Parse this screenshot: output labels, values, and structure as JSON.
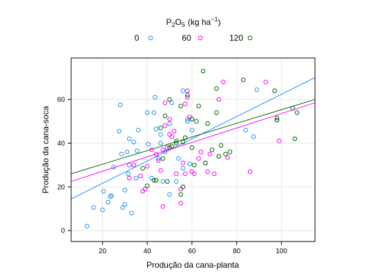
{
  "chart_data": {
    "type": "scatter",
    "title": "P2O5 (kg ha−1)",
    "title_parts": {
      "base": "P",
      "sub1": "2",
      "mid": "O",
      "sub2": "5",
      "unit": "(kg ha",
      "sup": "−1",
      "close": ")"
    },
    "xlabel": "Produção da cana-planta",
    "ylabel": "Produção da cana-soca",
    "xlim": [
      6,
      115
    ],
    "ylim": [
      -5,
      79
    ],
    "xticks": [
      20,
      40,
      60,
      80,
      100
    ],
    "yticks": [
      0,
      20,
      40,
      60
    ],
    "grid": true,
    "legend_position": "top",
    "series": [
      {
        "name": "0",
        "color": "#1e90ff",
        "points": [
          [
            13,
            2
          ],
          [
            16,
            10.5
          ],
          [
            20,
            9.5
          ],
          [
            20.5,
            18
          ],
          [
            22.5,
            13
          ],
          [
            23.5,
            15.5
          ],
          [
            24,
            16
          ],
          [
            25,
            29
          ],
          [
            27.5,
            45.5
          ],
          [
            28,
            57.5
          ],
          [
            28.5,
            35
          ],
          [
            29,
            10.5
          ],
          [
            30,
            12
          ],
          [
            30,
            18.5
          ],
          [
            31,
            36
          ],
          [
            31.5,
            26
          ],
          [
            32,
            30
          ],
          [
            32,
            42
          ],
          [
            33,
            8
          ],
          [
            34,
            40.5
          ],
          [
            35,
            24
          ],
          [
            35.5,
            36.5
          ],
          [
            36,
            46
          ],
          [
            40,
            54
          ],
          [
            40.5,
            39.5
          ],
          [
            42,
            24
          ],
          [
            43,
            54
          ],
          [
            43.5,
            61
          ],
          [
            44,
            46.5
          ],
          [
            45,
            33
          ],
          [
            46,
            44
          ],
          [
            46,
            40
          ],
          [
            47,
            22.5
          ],
          [
            48,
            36
          ],
          [
            50,
            16.5
          ],
          [
            50,
            49
          ],
          [
            51,
            58.5
          ],
          [
            53,
            22.5
          ],
          [
            54,
            33
          ],
          [
            56,
            64
          ],
          [
            56,
            28.5
          ],
          [
            58,
            50
          ],
          [
            58,
            51
          ],
          [
            59,
            30.5
          ],
          [
            60,
            51
          ],
          [
            60,
            46
          ],
          [
            84,
            46
          ],
          [
            87.5,
            43
          ],
          [
            89,
            64.5
          ]
        ]
      },
      {
        "name": "60",
        "color": "#ff00ff",
        "points": [
          [
            32,
            24
          ],
          [
            34,
            30
          ],
          [
            37,
            25
          ],
          [
            38,
            18
          ],
          [
            39,
            19
          ],
          [
            40,
            29.5
          ],
          [
            42,
            37
          ],
          [
            44,
            35
          ],
          [
            45,
            32
          ],
          [
            46,
            27.5
          ],
          [
            47,
            37
          ],
          [
            47,
            11
          ],
          [
            48,
            48
          ],
          [
            48,
            58.5
          ],
          [
            49,
            38
          ],
          [
            50,
            44
          ],
          [
            50,
            51
          ],
          [
            51,
            43
          ],
          [
            52,
            45.5
          ],
          [
            53,
            26
          ],
          [
            55,
            12.5
          ],
          [
            55,
            19
          ],
          [
            56,
            31
          ],
          [
            57,
            26
          ],
          [
            57,
            58
          ],
          [
            58,
            61
          ],
          [
            58,
            64
          ],
          [
            59,
            52
          ],
          [
            60,
            27
          ],
          [
            61,
            26
          ],
          [
            63,
            33
          ],
          [
            64,
            36
          ],
          [
            66,
            31
          ],
          [
            67,
            27
          ],
          [
            68,
            35
          ],
          [
            70,
            26
          ],
          [
            72,
            60
          ],
          [
            74,
            68
          ],
          [
            76,
            33.5
          ],
          [
            86,
            27
          ],
          [
            93,
            68
          ],
          [
            99,
            41
          ]
        ]
      },
      {
        "name": "120",
        "color": "#006400",
        "points": [
          [
            38,
            28.5
          ],
          [
            40,
            20.5
          ],
          [
            43,
            23
          ],
          [
            44,
            23
          ],
          [
            46,
            47
          ],
          [
            47,
            33
          ],
          [
            48,
            52.5
          ],
          [
            49,
            22.5
          ],
          [
            50,
            38
          ],
          [
            50,
            60
          ],
          [
            51,
            38.5
          ],
          [
            53,
            40
          ],
          [
            53,
            41
          ],
          [
            55,
            57
          ],
          [
            55,
            16.5
          ],
          [
            56,
            20
          ],
          [
            56,
            40.5
          ],
          [
            57,
            42.5
          ],
          [
            58,
            62
          ],
          [
            60,
            38
          ],
          [
            60,
            51
          ],
          [
            61,
            30
          ],
          [
            62,
            50
          ],
          [
            63,
            57
          ],
          [
            65,
            73
          ],
          [
            66,
            31
          ],
          [
            67,
            49
          ],
          [
            69,
            37
          ],
          [
            71,
            54
          ],
          [
            71,
            65
          ],
          [
            72,
            34
          ],
          [
            73,
            39
          ],
          [
            75,
            35
          ],
          [
            77,
            36
          ],
          [
            83,
            69
          ],
          [
            97,
            64
          ],
          [
            98,
            50.5
          ],
          [
            98,
            51.5
          ],
          [
            105,
            56
          ],
          [
            106,
            42
          ],
          [
            107,
            54
          ]
        ]
      }
    ],
    "fit_lines": [
      {
        "series": "0",
        "x": [
          6,
          115
        ],
        "y": [
          14.5,
          70
        ]
      },
      {
        "series": "60",
        "x": [
          6,
          115
        ],
        "y": [
          22.5,
          58.5
        ]
      },
      {
        "series": "120",
        "x": [
          6,
          115
        ],
        "y": [
          26,
          60
        ]
      }
    ]
  }
}
